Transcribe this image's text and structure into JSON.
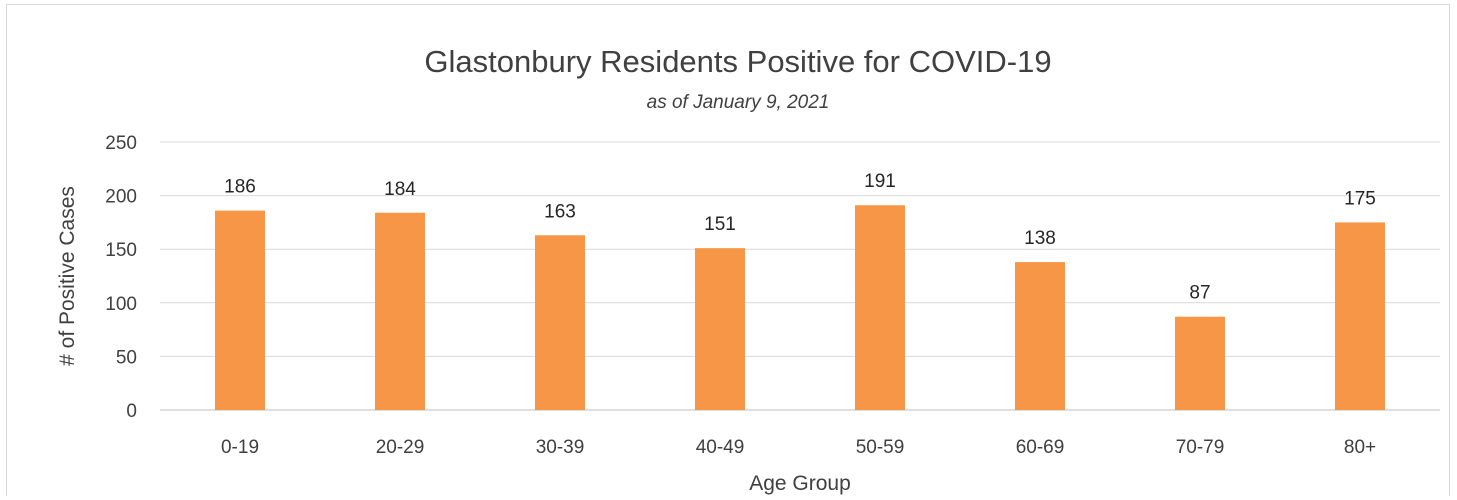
{
  "chart_data": {
    "type": "bar",
    "title": "Glastonbury Residents Positive for COVID-19",
    "subtitle": "as of January 9, 2021",
    "xlabel": "Age Group",
    "ylabel": "# of Positive Cases",
    "categories": [
      "0-19",
      "20-29",
      "30-39",
      "40-49",
      "50-59",
      "60-69",
      "70-79",
      "80+"
    ],
    "values": [
      186,
      184,
      163,
      151,
      191,
      138,
      87,
      175
    ],
    "ylim": [
      0,
      250
    ],
    "yticks": [
      "0",
      "50",
      "100",
      "150",
      "200",
      "250"
    ],
    "ytick_values": [
      0,
      50,
      100,
      150,
      200,
      250
    ],
    "grid": true,
    "legend": "none",
    "bar_color": "#f79646"
  }
}
